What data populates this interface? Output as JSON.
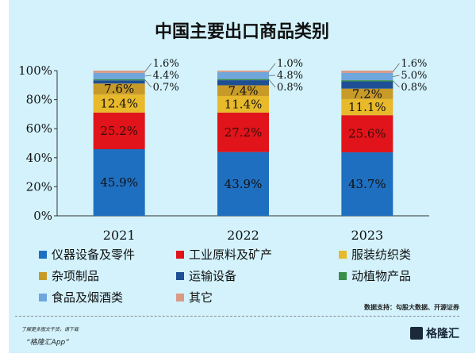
{
  "chart_data": {
    "type": "bar",
    "stacked": true,
    "title": "中国主要出口商品类别",
    "categories": [
      "2021",
      "2022",
      "2023"
    ],
    "ylim": [
      0,
      100
    ],
    "yticks": [
      "0%",
      "20%",
      "40%",
      "60%",
      "80%",
      "100%"
    ],
    "legend_position": "bottom",
    "series": [
      {
        "name": "仪器设备及零件",
        "color": "#1f6fc0",
        "values": [
          45.9,
          43.9,
          43.7
        ],
        "labels": [
          "45.9%",
          "43.9%",
          "43.7%"
        ]
      },
      {
        "name": "工业原料及矿产",
        "color": "#e0141a",
        "values": [
          25.2,
          27.2,
          25.6
        ],
        "labels": [
          "25.2%",
          "27.2%",
          "25.6%"
        ]
      },
      {
        "name": "服装纺织类",
        "color": "#e8b92a",
        "values": [
          12.4,
          11.4,
          11.1
        ],
        "labels": [
          "12.4%",
          "11.4%",
          "11.1%"
        ]
      },
      {
        "name": "杂项制品",
        "color": "#c89a28",
        "values": [
          7.6,
          7.4,
          7.2
        ],
        "labels": [
          "7.6%",
          "7.4%",
          "7.2%"
        ]
      },
      {
        "name": "运输设备",
        "color": "#1e4f94",
        "values": [
          2.2,
          3.5,
          5.0
        ],
        "labels": [
          "",
          "",
          ""
        ]
      },
      {
        "name": "动植物产品",
        "color": "#3a8f4a",
        "values": [
          0.7,
          0.8,
          0.8
        ],
        "labels": [
          "0.7%",
          "0.8%",
          "0.8%"
        ]
      },
      {
        "name": "食品及烟酒类",
        "color": "#6fa6dc",
        "values": [
          4.4,
          4.8,
          5.0
        ],
        "labels": [
          "4.4%",
          "4.8%",
          "5.0%"
        ]
      },
      {
        "name": "其它",
        "color": "#d99a86",
        "values": [
          1.6,
          1.0,
          1.6
        ],
        "labels": [
          "1.6%",
          "1.0%",
          "1.6%"
        ]
      }
    ]
  },
  "source": "数据支持：勾股大数据、开源证券",
  "promo": {
    "line1": "了解更多图文干货，请下载",
    "line2": "“格隆汇App”"
  },
  "logo": "格隆汇"
}
